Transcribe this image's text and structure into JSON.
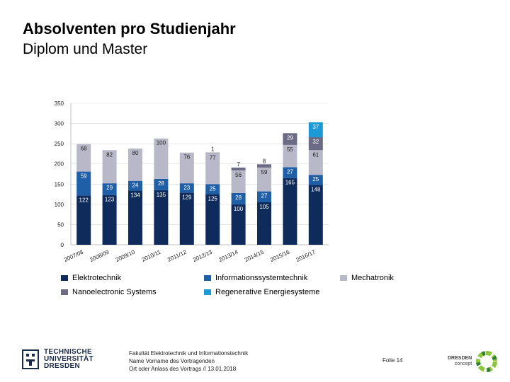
{
  "header": {
    "title": "Absolventen pro Studienjahr",
    "subtitle": "Diplom und Master"
  },
  "chart_data": {
    "type": "bar",
    "stacked": true,
    "categories": [
      "2007/08",
      "2008/09",
      "2009/10",
      "2010/11",
      "2011/12",
      "2012/13",
      "2013/14",
      "2014/15",
      "2015/16",
      "2016/17"
    ],
    "ylim": [
      0,
      350
    ],
    "yticks": [
      0,
      50,
      100,
      150,
      200,
      250,
      300,
      350
    ],
    "series": [
      {
        "name": "Elektrotechnik",
        "color": "#0f2b5b",
        "values": [
          122,
          123,
          134,
          135,
          129,
          125,
          100,
          105,
          165,
          148
        ],
        "labels": [
          "122",
          "123",
          "134",
          "135",
          "129",
          "125",
          "100",
          "105",
          "165",
          "148"
        ]
      },
      {
        "name": "Informationssystemtechnik",
        "color": "#1f5fa8",
        "values": [
          59,
          29,
          24,
          28,
          23,
          25,
          28,
          27,
          27,
          25
        ],
        "labels": [
          "59",
          "29",
          "24",
          "28",
          "23",
          "25",
          "28",
          "27",
          "27",
          "25"
        ]
      },
      {
        "name": "Mechatronik",
        "color": "#b8b8c8",
        "values": [
          68,
          82,
          80,
          100,
          76,
          77,
          56,
          59,
          55,
          61
        ],
        "labels": [
          "68",
          "82",
          "80",
          "100",
          "76",
          "77",
          "56",
          "59",
          "55",
          "61"
        ]
      },
      {
        "name": "Nanoelectronic Systems",
        "color": "#6b6b86",
        "values": [
          0,
          0,
          0,
          0,
          0,
          1,
          7,
          8,
          29,
          32
        ],
        "labels": [
          "",
          "",
          "",
          "",
          "",
          "1",
          "7",
          "8",
          "29",
          "32"
        ]
      },
      {
        "name": "Regenerative Energiesysteme",
        "color": "#1b9ad6",
        "values": [
          0,
          0,
          0,
          0,
          0,
          0,
          0,
          0,
          0,
          37
        ],
        "labels": [
          "",
          "",
          "",
          "",
          "",
          "",
          "",
          "",
          "",
          "37"
        ]
      }
    ]
  },
  "footer": {
    "lines": [
      "Fakultät Elektrotechnik und Informationstechnik",
      "Name Vorname des Vortragenden",
      "Ort oder Anlass des Vortrags // 13.01.2018"
    ],
    "slide": "Folie 14",
    "tu_logo": [
      "TECHNISCHE",
      "UNIVERSITÄT",
      "DRESDEN"
    ],
    "dd_logo": [
      "DRESDEN",
      "concept"
    ]
  }
}
